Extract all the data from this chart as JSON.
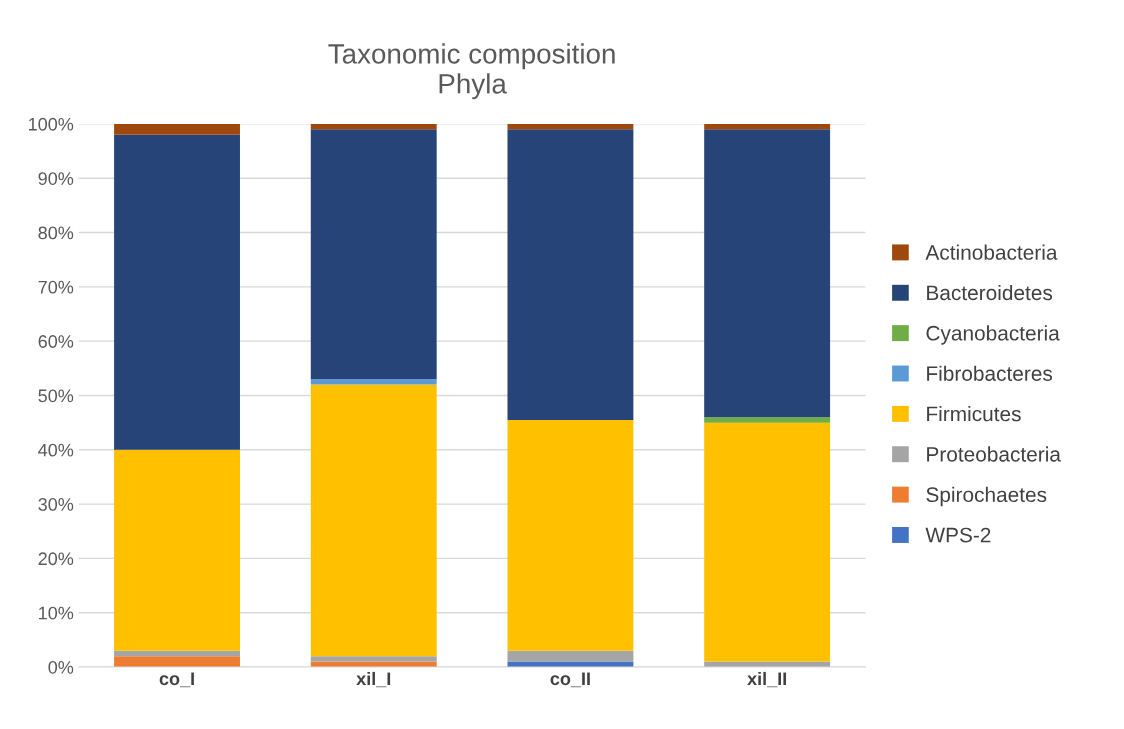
{
  "chart_data": {
    "type": "bar",
    "stacked": true,
    "title": "Taxonomic composition\nPhyla",
    "categories": [
      "co_I",
      "xil_I",
      "co_II",
      "xil_II"
    ],
    "series": [
      {
        "name": "WPS-2",
        "color": "#4472c4",
        "values": [
          0,
          0,
          1,
          0
        ]
      },
      {
        "name": "Spirochaetes",
        "color": "#ed7d31",
        "values": [
          2,
          1,
          0,
          0
        ]
      },
      {
        "name": "Proteobacteria",
        "color": "#a5a5a5",
        "values": [
          1,
          1,
          2,
          1
        ]
      },
      {
        "name": "Firmicutes",
        "color": "#ffc000",
        "values": [
          37,
          50,
          42.5,
          44
        ]
      },
      {
        "name": "Fibrobacteres",
        "color": "#5b9bd5",
        "values": [
          0,
          1,
          0,
          0
        ]
      },
      {
        "name": "Cyanobacteria",
        "color": "#70ad47",
        "values": [
          0,
          0,
          0,
          1
        ]
      },
      {
        "name": "Bacteroidetes",
        "color": "#264478",
        "values": [
          58,
          46,
          53.5,
          53
        ]
      },
      {
        "name": "Actinobacteria",
        "color": "#9e480e",
        "values": [
          2,
          1,
          1,
          1
        ]
      }
    ],
    "ylim": [
      0,
      100
    ],
    "yticks": [
      {
        "value": 0,
        "label": "0%"
      },
      {
        "value": 10,
        "label": "10%"
      },
      {
        "value": 20,
        "label": "20%"
      },
      {
        "value": 30,
        "label": "30%"
      },
      {
        "value": 40,
        "label": "40%"
      },
      {
        "value": 50,
        "label": "50%"
      },
      {
        "value": 60,
        "label": "60%"
      },
      {
        "value": 70,
        "label": "70%"
      },
      {
        "value": 80,
        "label": "80%"
      },
      {
        "value": 90,
        "label": "90%"
      },
      {
        "value": 100,
        "label": "100%"
      }
    ],
    "grid": "y",
    "legend": "right"
  }
}
